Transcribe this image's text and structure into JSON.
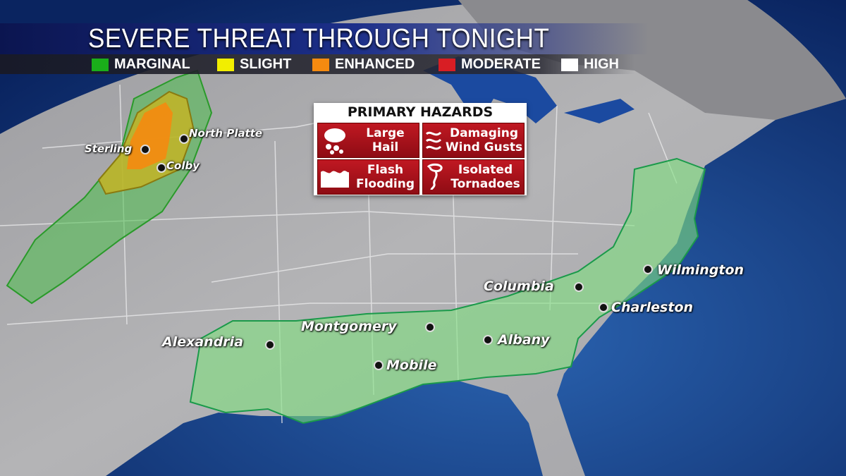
{
  "header": {
    "title": "SEVERE THREAT THROUGH TONIGHT"
  },
  "legend": [
    {
      "label": "MARGINAL",
      "color": "#1aae1a"
    },
    {
      "label": "SLIGHT",
      "color": "#f2ee00"
    },
    {
      "label": "ENHANCED",
      "color": "#f58a10"
    },
    {
      "label": "MODERATE",
      "color": "#d81e24"
    },
    {
      "label": "HIGH",
      "color": "#ffffff"
    }
  ],
  "hazards": {
    "title": "PRIMARY HAZARDS",
    "items": [
      {
        "line1": "Large",
        "line2": "Hail",
        "icon": "hail-icon"
      },
      {
        "line1": "Damaging",
        "line2": "Wind Gusts",
        "icon": "wind-icon"
      },
      {
        "line1": "Flash",
        "line2": "Flooding",
        "icon": "flood-icon"
      },
      {
        "line1": "Isolated",
        "line2": "Tornadoes",
        "icon": "tornado-icon"
      }
    ]
  },
  "cities": {
    "sterling": "Sterling",
    "north_platte": "North Platte",
    "colby": "Colby",
    "alexandria": "Alexandria",
    "montgomery": "Montgomery",
    "mobile": "Mobile",
    "albany": "Albany",
    "columbia": "Columbia",
    "charleston": "Charleston",
    "wilmington": "Wilmington"
  },
  "colors": {
    "land": "#a9a9ab",
    "ocean": "#123a7a",
    "lakes": "#1b4aa0"
  }
}
